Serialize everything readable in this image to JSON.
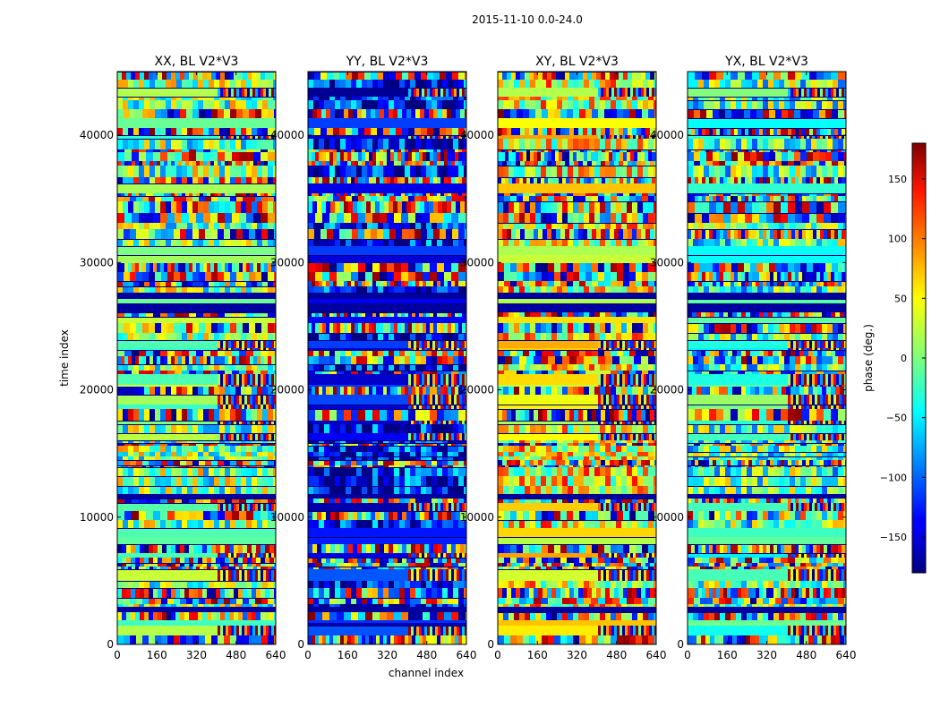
{
  "figure": {
    "suptitle": "2015-11-10 0.0-24.0"
  },
  "chart_data": {
    "type": "heatmap",
    "colormap": "jet",
    "panels": [
      {
        "title": "XX, BL V2*V3"
      },
      {
        "title": "YY, BL V2*V3"
      },
      {
        "title": "XY, BL V2*V3"
      },
      {
        "title": "YX, BL V2*V3"
      }
    ],
    "xlabel": "channel index",
    "ylabel": "time index",
    "xlim": [
      0,
      640
    ],
    "ylim": [
      0,
      45000
    ],
    "xticks": [
      0,
      160,
      320,
      480,
      640
    ],
    "yticks": [
      0,
      10000,
      20000,
      30000,
      40000
    ],
    "colorbar": {
      "label": "phase (deg.)",
      "range": [
        -180,
        180
      ],
      "ticks": [
        150,
        100,
        50,
        0,
        -50,
        -100,
        -150
      ],
      "tick_labels": [
        "150",
        "100",
        "50",
        "0",
        "−50",
        "−100",
        "−150"
      ]
    },
    "grid": false,
    "legend": "none"
  }
}
